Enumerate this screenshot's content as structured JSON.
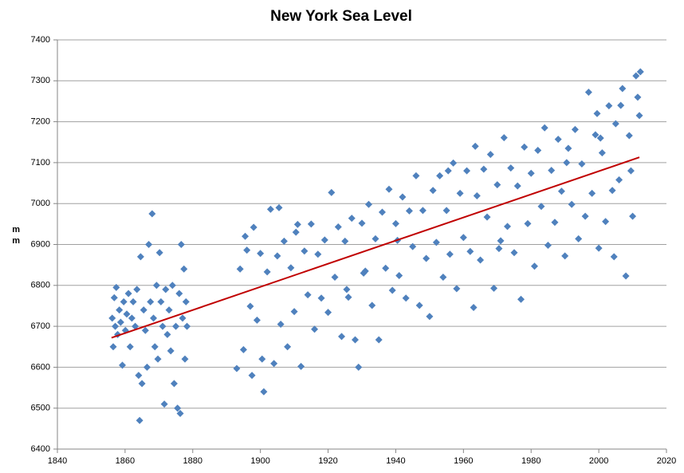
{
  "chart_data": {
    "type": "scatter",
    "title": "New York Sea Level",
    "ylabel": "mm",
    "xlim": [
      1840,
      2020
    ],
    "xticks": [
      1840,
      1860,
      1880,
      1900,
      1920,
      1940,
      1960,
      1980,
      2000,
      2020
    ],
    "ylim": [
      6400,
      7400
    ],
    "yticks": [
      6400,
      6500,
      6600,
      6700,
      6800,
      6900,
      7000,
      7100,
      7200,
      7300,
      7400
    ],
    "grid": true,
    "color": "#4f81bd",
    "x": [
      1856.2,
      1856.5,
      1856.8,
      1857.1,
      1857.4,
      1857.8,
      1858.3,
      1858.7,
      1859.2,
      1859.6,
      1860.1,
      1860.5,
      1861.0,
      1861.5,
      1862.0,
      1862.4,
      1863.0,
      1863.5,
      1864.0,
      1864.3,
      1864.6,
      1865.0,
      1865.5,
      1866.0,
      1866.5,
      1867.0,
      1867.5,
      1868.0,
      1868.4,
      1868.8,
      1869.3,
      1869.7,
      1870.2,
      1870.6,
      1871.1,
      1871.6,
      1872.0,
      1872.5,
      1873.0,
      1873.5,
      1874.0,
      1874.5,
      1875.0,
      1875.5,
      1876.0,
      1876.3,
      1876.6,
      1877.0,
      1877.4,
      1877.7,
      1878.0,
      1878.3,
      1893,
      1894,
      1895,
      1896,
      1897,
      1898,
      1899,
      1900,
      1901,
      1902,
      1903,
      1904,
      1905,
      1906,
      1907,
      1908,
      1909,
      1910,
      1911,
      1912,
      1913,
      1914,
      1915,
      1916,
      1917,
      1918,
      1919,
      1920,
      1921,
      1922,
      1923,
      1924,
      1925,
      1926,
      1927,
      1928,
      1929,
      1930,
      1931,
      1932,
      1933,
      1934,
      1935,
      1936,
      1937,
      1938,
      1939,
      1940,
      1941,
      1942,
      1943,
      1944,
      1945,
      1946,
      1947,
      1948,
      1949,
      1950,
      1951,
      1952,
      1953,
      1954,
      1955,
      1956,
      1957,
      1958,
      1959,
      1960,
      1961,
      1962,
      1963,
      1964,
      1965,
      1966,
      1967,
      1968,
      1969,
      1970,
      1971,
      1972,
      1973,
      1974,
      1975,
      1976,
      1977,
      1978,
      1979,
      1980,
      1981,
      1982,
      1983,
      1984,
      1985,
      1986,
      1987,
      1988,
      1989,
      1990,
      1991,
      1992,
      1993,
      1994,
      1995,
      1996,
      1997,
      1998,
      1999,
      2000,
      2001,
      2002,
      2003,
      2004,
      2005,
      2006,
      2007,
      2008,
      2009,
      2010,
      2011,
      2012,
      2012.3,
      2011.5,
      2006.5,
      1999.5,
      1963.5,
      1940.5,
      1910.5,
      1900.5,
      1905.5,
      1895.5,
      1897.5,
      1930.5,
      1955.5,
      1970.5,
      1990.5,
      2000.5,
      2004.5,
      2009.5,
      1925.5
    ],
    "values": [
      6720,
      6650,
      6770,
      6700,
      6795,
      6680,
      6740,
      6710,
      6605,
      6760,
      6690,
      6730,
      6780,
      6650,
      6720,
      6760,
      6700,
      6790,
      6580,
      6470,
      6870,
      6560,
      6740,
      6690,
      6600,
      6900,
      6760,
      6975,
      6720,
      6650,
      6800,
      6620,
      6880,
      6760,
      6700,
      6510,
      6790,
      6680,
      6740,
      6640,
      6800,
      6560,
      6700,
      6500,
      6780,
      6487,
      6900,
      6720,
      6840,
      6620,
      6760,
      6700,
      6597,
      6840,
      6643,
      6886,
      6749,
      6942,
      6715,
      6878,
      6540,
      6833,
      6986,
      6609,
      6872,
      6705,
      6908,
      6650,
      6843,
      6736,
      6949,
      6602,
      6884,
      6777,
      6950,
      6693,
      6876,
      6769,
      6911,
      6734,
      7027,
      6820,
      6943,
      6675,
      6908,
      6771,
      6964,
      6667,
      6600,
      6952,
      6835,
      6998,
      6751,
      6914,
      6667,
      6979,
      6842,
      7035,
      6788,
      6951,
      6824,
      7016,
      6769,
      6982,
      6895,
      7068,
      6751,
      6983,
      6866,
      6724,
      7032,
      6905,
      7068,
      6820,
      6983,
      6876,
      7099,
      6792,
      7025,
      6917,
      7080,
      6883,
      6746,
      7019,
      6862,
      7084,
      6967,
      7120,
      6793,
      7046,
      6909,
      7161,
      6944,
      7087,
      6880,
      7043,
      6766,
      7138,
      6951,
      7074,
      6847,
      7130,
      6993,
      7185,
      6898,
      7081,
      6954,
      7157,
      7030,
      6872,
      7135,
      6998,
      7181,
      6914,
      7097,
      6969,
      7272,
      7025,
      7168,
      6891,
      7124,
      6956,
      7239,
      7032,
      7195,
      7058,
      7281,
      6823,
      7166,
      6969,
      7312,
      7215,
      7322,
      7260,
      7240,
      7220,
      7140,
      6910,
      6930,
      6620,
      6990,
      6920,
      6580,
      6830,
      7080,
      6890,
      7100,
      7160,
      6870,
      7080,
      6790
    ],
    "trendline": {
      "x": [
        1856,
        2012
      ],
      "y": [
        6672,
        7113
      ],
      "color": "#c00000"
    }
  }
}
